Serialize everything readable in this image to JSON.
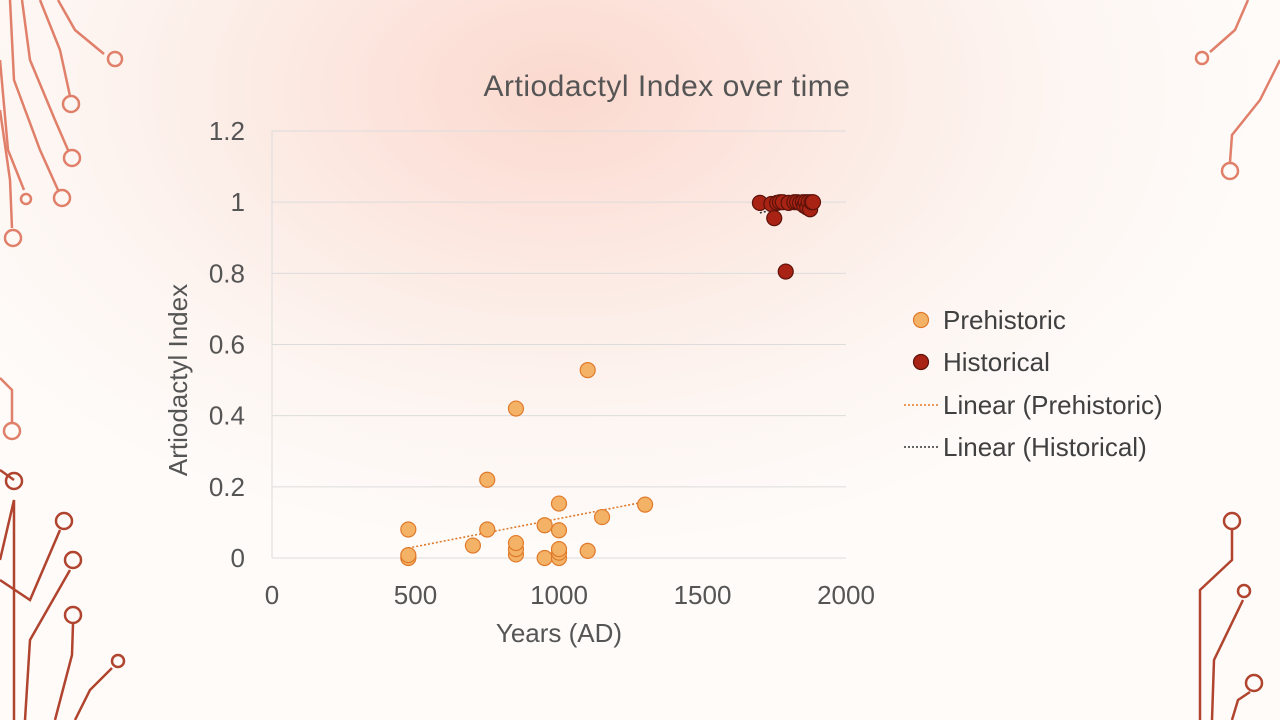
{
  "colors": {
    "circuit": "#e0806a",
    "circuit_dark": "#b0442e",
    "prehistoric_fill": "#f3b266",
    "prehistoric_stroke": "#e07a2a",
    "historical_fill": "#a82313",
    "historical_stroke": "#5c120a",
    "gridline": "#dcdcdc",
    "text": "#555555"
  },
  "chart_data": {
    "type": "scatter",
    "title": "Artiodactyl Index over time",
    "xlabel": "Years (AD)",
    "ylabel": "Artiodactyl Index",
    "xlim": [
      0,
      2000
    ],
    "ylim": [
      0,
      1.2
    ],
    "x_ticks": [
      0,
      500,
      1000,
      1500,
      2000
    ],
    "y_ticks": [
      0,
      0.2,
      0.4,
      0.6,
      0.8,
      1,
      1.2
    ],
    "x_tick_labels": [
      "0",
      "500",
      "1000",
      "1500",
      "2000"
    ],
    "y_tick_labels": [
      "0",
      "0.2",
      "0.4",
      "0.6",
      "0.8",
      "1",
      "1.2"
    ],
    "grid": "horizontal",
    "legend_position": "right",
    "series": [
      {
        "name": "Prehistoric",
        "points": [
          [
            475,
            0.0
          ],
          [
            475,
            0.008
          ],
          [
            475,
            0.08
          ],
          [
            700,
            0.035
          ],
          [
            750,
            0.08
          ],
          [
            750,
            0.22
          ],
          [
            850,
            0.01
          ],
          [
            850,
            0.025
          ],
          [
            850,
            0.042
          ],
          [
            850,
            0.42
          ],
          [
            950,
            0.0
          ],
          [
            950,
            0.092
          ],
          [
            1000,
            0.0
          ],
          [
            1000,
            0.015
          ],
          [
            1000,
            0.025
          ],
          [
            1000,
            0.078
          ],
          [
            1000,
            0.153
          ],
          [
            1100,
            0.02
          ],
          [
            1100,
            0.528
          ],
          [
            1150,
            0.115
          ],
          [
            1300,
            0.15
          ]
        ]
      },
      {
        "name": "Historical",
        "points": [
          [
            1700,
            0.998
          ],
          [
            1740,
            0.995
          ],
          [
            1750,
            0.955
          ],
          [
            1760,
            0.998
          ],
          [
            1770,
            1.0
          ],
          [
            1780,
            1.0
          ],
          [
            1790,
            0.805
          ],
          [
            1800,
            0.998
          ],
          [
            1820,
            1.0
          ],
          [
            1830,
            1.0
          ],
          [
            1840,
            0.998
          ],
          [
            1850,
            1.0
          ],
          [
            1855,
            0.99
          ],
          [
            1860,
            1.0
          ],
          [
            1865,
            0.985
          ],
          [
            1870,
            1.0
          ],
          [
            1875,
            0.98
          ],
          [
            1880,
            1.0
          ],
          [
            1885,
            1.0
          ]
        ]
      }
    ],
    "trendlines": [
      {
        "name": "Linear (Prehistoric)",
        "series": "Prehistoric",
        "x": [
          475,
          1300
        ],
        "y": [
          0.028,
          0.158
        ]
      },
      {
        "name": "Linear (Historical)",
        "series": "Historical",
        "x": [
          1700,
          1885
        ],
        "y": [
          0.97,
          1.005
        ]
      }
    ],
    "legend": [
      "Prehistoric",
      "Historical",
      "Linear (Prehistoric)",
      "Linear (Historical)"
    ]
  }
}
